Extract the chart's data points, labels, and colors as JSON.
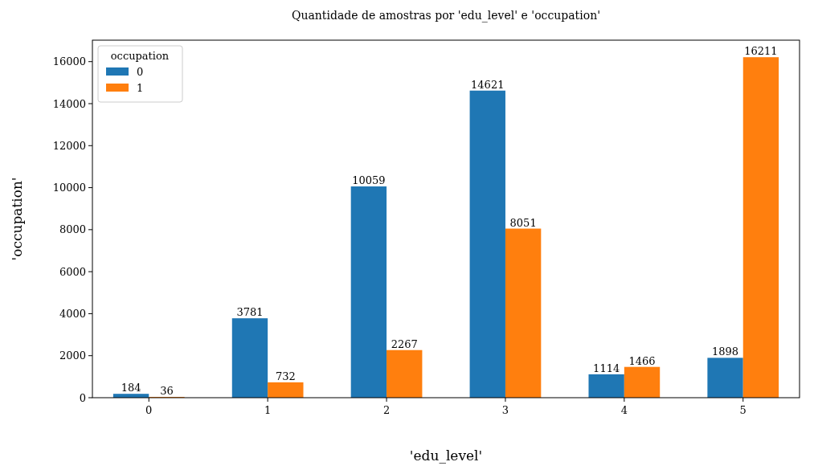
{
  "chart_data": {
    "type": "bar",
    "title": "Quantidade de amostras por 'edu_level' e 'occupation'",
    "xlabel": "'edu_level'",
    "ylabel": "'occupation'",
    "legend_title": "occupation",
    "legend": "top left",
    "categories": [
      "0",
      "1",
      "2",
      "3",
      "4",
      "5"
    ],
    "series": [
      {
        "name": "0",
        "color": "#1f77b4",
        "values": [
          184,
          3781,
          10059,
          14621,
          1114,
          1898
        ]
      },
      {
        "name": "1",
        "color": "#ff7f0e",
        "values": [
          36,
          732,
          2267,
          8051,
          1466,
          16211
        ]
      }
    ],
    "ylim": [
      0,
      17022
    ],
    "yticks": [
      0,
      2000,
      4000,
      6000,
      8000,
      10000,
      12000,
      14000,
      16000
    ],
    "data_labels": true
  }
}
